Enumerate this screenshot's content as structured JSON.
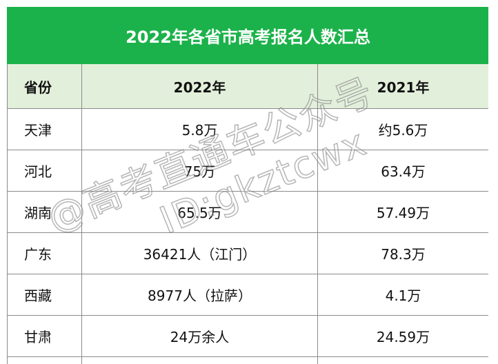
{
  "table": {
    "title": "2022年各省市高考报名人数汇总",
    "header": [
      "省份",
      "2022年",
      "2021年"
    ],
    "rows": [
      [
        "天津",
        "5.8万",
        "约5.6万"
      ],
      [
        "河北",
        "75万",
        "63.4万"
      ],
      [
        "湖南",
        "65.5万",
        "57.49万"
      ],
      [
        "广东",
        "36421人（江门）",
        "78.3万"
      ],
      [
        "西藏",
        "8977人（拉萨）",
        "4.1万"
      ],
      [
        "甘肃",
        "24万余人",
        "24.59万"
      ]
    ]
  },
  "watermark": [
    "@高考直通车公众号",
    "ID:gkztcwx"
  ]
}
